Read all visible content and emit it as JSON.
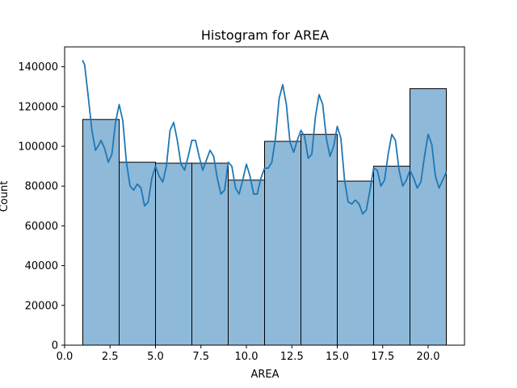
{
  "chart_data": {
    "type": "bar",
    "title": "Histogram for AREA",
    "xlabel": "AREA",
    "ylabel": "Count",
    "xlim": [
      0,
      22
    ],
    "ylim": [
      0,
      150000
    ],
    "xticks": [
      0,
      2.5,
      5,
      7.5,
      10,
      12.5,
      15,
      17.5,
      20
    ],
    "xtick_labels": [
      "0.0",
      "2.5",
      "5.0",
      "7.5",
      "10.0",
      "12.5",
      "15.0",
      "17.5",
      "20.0"
    ],
    "yticks": [
      0,
      20000,
      40000,
      60000,
      80000,
      100000,
      120000,
      140000
    ],
    "ytick_labels": [
      "0",
      "20000",
      "40000",
      "60000",
      "80000",
      "100000",
      "120000",
      "140000"
    ],
    "bins": [
      {
        "x0": 1,
        "x1": 3,
        "count": 113500
      },
      {
        "x0": 3,
        "x1": 5,
        "count": 92000
      },
      {
        "x0": 5,
        "x1": 7,
        "count": 91500
      },
      {
        "x0": 7,
        "x1": 9,
        "count": 91500
      },
      {
        "x0": 9,
        "x1": 11,
        "count": 83000
      },
      {
        "x0": 11,
        "x1": 13,
        "count": 102500
      },
      {
        "x0": 13,
        "x1": 15,
        "count": 106000
      },
      {
        "x0": 15,
        "x1": 17,
        "count": 82500
      },
      {
        "x0": 17,
        "x1": 19,
        "count": 90000
      },
      {
        "x0": 19,
        "x1": 21,
        "count": 129000
      }
    ],
    "kde": {
      "x": [
        1.0,
        1.1,
        1.3,
        1.5,
        1.7,
        1.9,
        2.0,
        2.2,
        2.4,
        2.6,
        2.8,
        3.0,
        3.2,
        3.4,
        3.6,
        3.8,
        4.0,
        4.2,
        4.4,
        4.6,
        4.8,
        5.0,
        5.2,
        5.4,
        5.6,
        5.8,
        6.0,
        6.2,
        6.4,
        6.6,
        6.8,
        7.0,
        7.2,
        7.4,
        7.6,
        7.8,
        8.0,
        8.2,
        8.4,
        8.6,
        8.8,
        9.0,
        9.2,
        9.4,
        9.6,
        9.8,
        10.0,
        10.2,
        10.4,
        10.6,
        10.8,
        11.0,
        11.2,
        11.4,
        11.6,
        11.8,
        12.0,
        12.2,
        12.4,
        12.6,
        12.8,
        13.0,
        13.2,
        13.4,
        13.6,
        13.8,
        14.0,
        14.2,
        14.4,
        14.6,
        14.8,
        15.0,
        15.2,
        15.4,
        15.6,
        15.8,
        16.0,
        16.2,
        16.4,
        16.6,
        16.8,
        17.0,
        17.2,
        17.4,
        17.6,
        17.8,
        18.0,
        18.2,
        18.4,
        18.6,
        18.8,
        19.0,
        19.2,
        19.4,
        19.6,
        19.8,
        20.0,
        20.2,
        20.4,
        20.6,
        20.8,
        21.0
      ],
      "y": [
        143000,
        141000,
        125000,
        108000,
        98000,
        101000,
        103000,
        99000,
        92000,
        96000,
        112000,
        121000,
        113000,
        92000,
        80000,
        78000,
        81000,
        79000,
        70000,
        72000,
        84000,
        90000,
        85000,
        82000,
        90000,
        108000,
        112000,
        103000,
        91000,
        88000,
        95000,
        103000,
        103000,
        95000,
        88000,
        93000,
        98000,
        95000,
        84000,
        76000,
        78000,
        92000,
        90000,
        79000,
        76000,
        83000,
        91000,
        85000,
        76000,
        76000,
        84000,
        89000,
        89000,
        92000,
        104000,
        124000,
        131000,
        121000,
        102000,
        97000,
        103000,
        108000,
        105000,
        94000,
        96000,
        115000,
        126000,
        121000,
        104000,
        95000,
        100000,
        110000,
        104000,
        83000,
        72000,
        71000,
        73000,
        71000,
        66000,
        68000,
        78000,
        89000,
        88000,
        80000,
        83000,
        96000,
        106000,
        103000,
        88000,
        80000,
        83000,
        88000,
        84000,
        79000,
        82000,
        95000,
        106000,
        101000,
        85000,
        79000,
        83000,
        87000
      ]
    },
    "grid": false,
    "colors": {
      "bar_fill": "#8fb9d9",
      "bar_edge": "#000000",
      "kde_line": "#1f77b4",
      "axes": "#000000"
    }
  }
}
